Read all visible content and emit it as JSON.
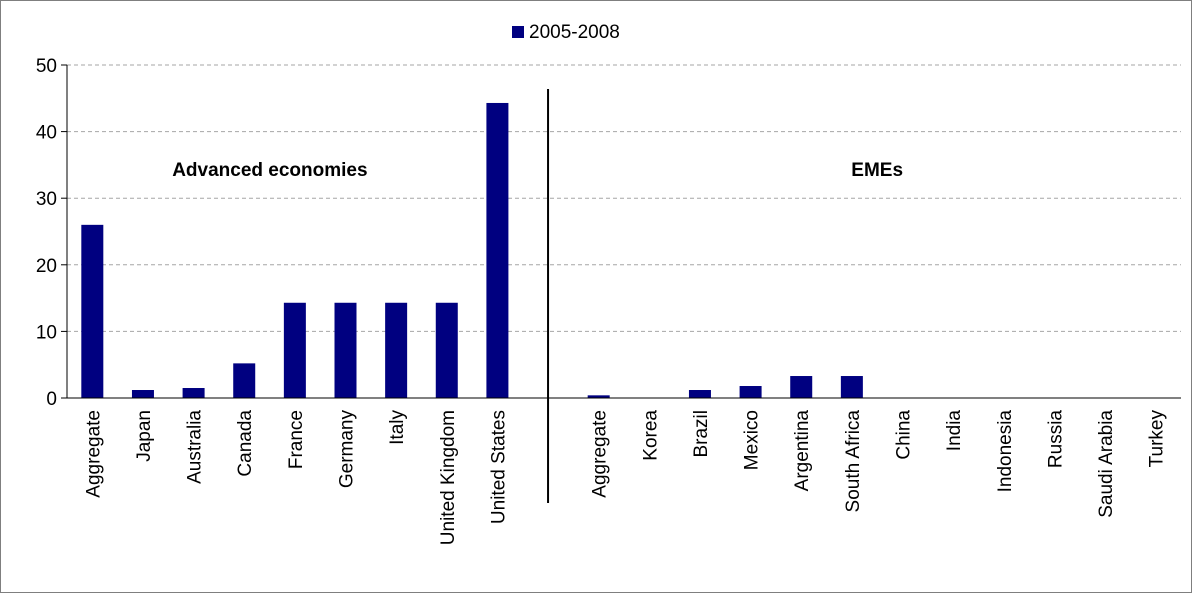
{
  "chart_data": {
    "type": "bar",
    "legend": {
      "label": "2005-2008",
      "position": "top"
    },
    "series": [
      {
        "name": "2005-2008",
        "color": "#000080"
      }
    ],
    "groups": [
      {
        "label": "Advanced economies",
        "categories": [
          "Aggregate",
          "Japan",
          "Australia",
          "Canada",
          "France",
          "Germany",
          "Italy",
          "United Kingdom",
          "United States"
        ],
        "values": [
          26.0,
          1.2,
          1.5,
          5.2,
          14.3,
          14.3,
          14.3,
          14.3,
          44.3
        ]
      },
      {
        "label": "EMEs",
        "categories": [
          "Aggregate",
          "Korea",
          "Brazil",
          "Mexico",
          "Argentina",
          "South Africa",
          "China",
          "India",
          "Indonesia",
          "Russia",
          "Saudi Arabia",
          "Turkey"
        ],
        "values": [
          0.4,
          0.0,
          1.2,
          1.8,
          3.3,
          3.3,
          0.0,
          0.0,
          0.0,
          0.0,
          0.0,
          0.0
        ]
      }
    ],
    "ylim": [
      0,
      50
    ],
    "yticks": [
      "0",
      "10",
      "20",
      "30",
      "40",
      "50"
    ],
    "grid": "horizontal dashed",
    "xlabel": "",
    "ylabel": ""
  }
}
